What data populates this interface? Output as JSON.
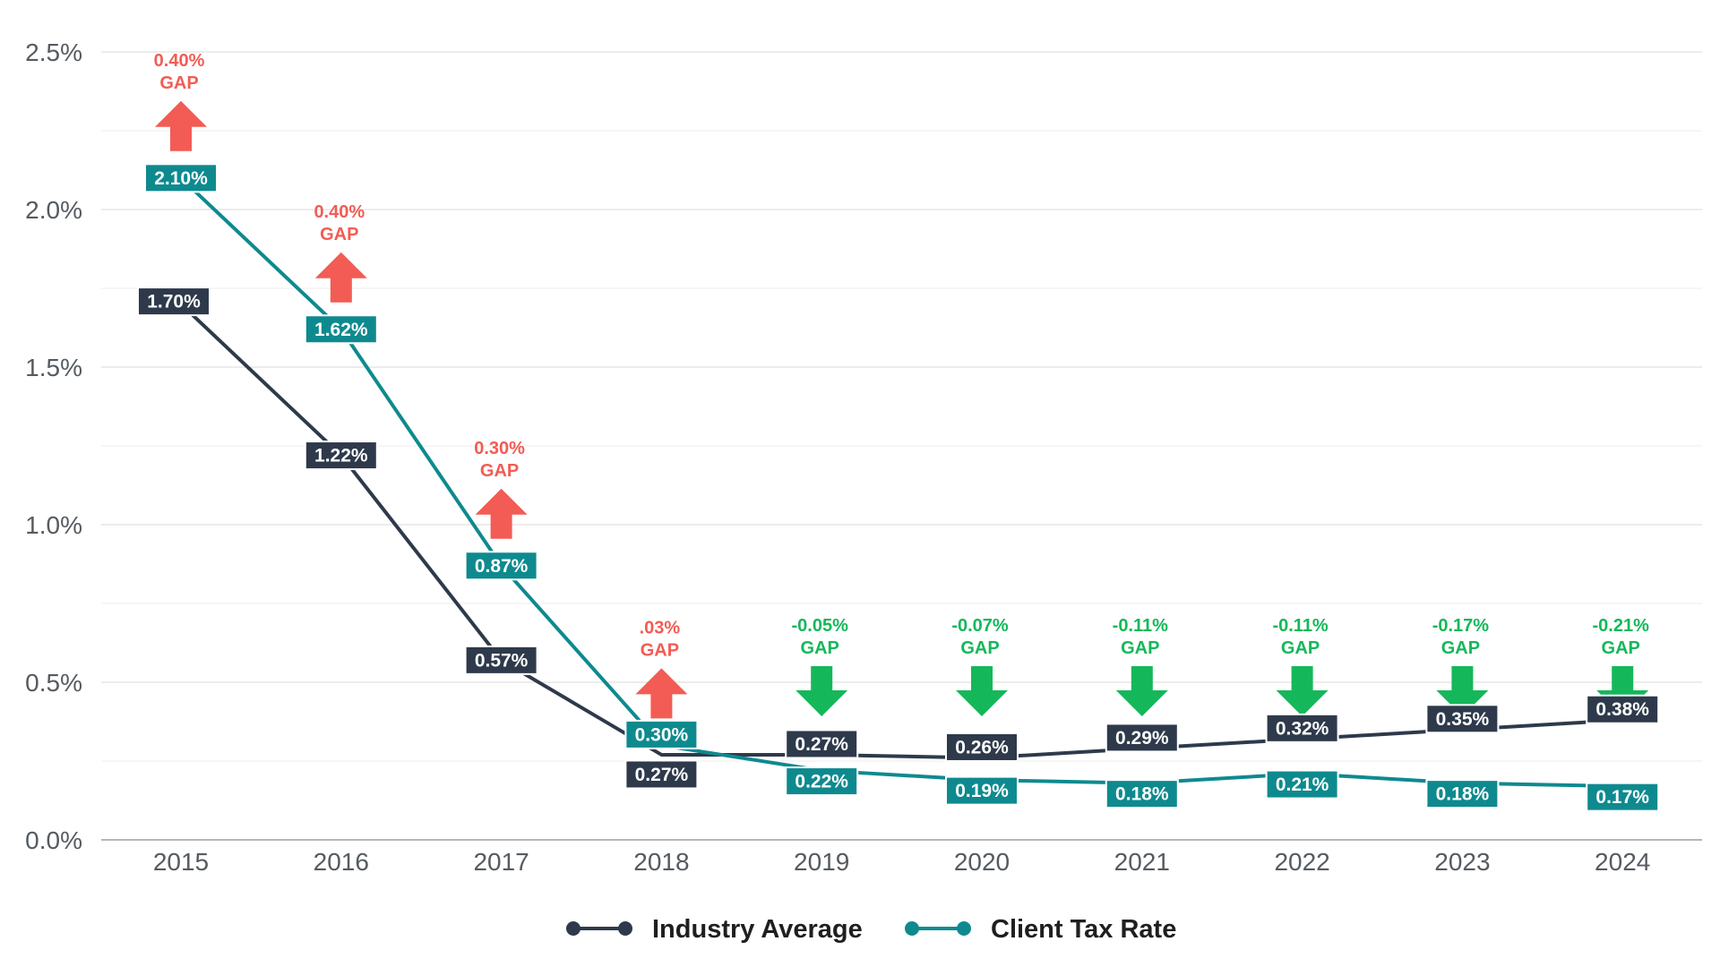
{
  "chart_data": {
    "type": "line",
    "categories": [
      "2015",
      "2016",
      "2017",
      "2018",
      "2019",
      "2020",
      "2021",
      "2022",
      "2023",
      "2024"
    ],
    "ylim": [
      0,
      2.5
    ],
    "y_ticks": [
      "0.0%",
      "0.5%",
      "1.0%",
      "1.5%",
      "2.0%",
      "2.5%"
    ],
    "grid": true,
    "legend_position": "bottom",
    "series": [
      {
        "name": "Industry Average",
        "color": "#2e3a4b",
        "values": [
          1.7,
          1.22,
          0.57,
          0.27,
          0.27,
          0.26,
          0.29,
          0.32,
          0.35,
          0.38
        ],
        "labels": [
          "1.70%",
          "1.22%",
          "0.57%",
          "0.27%",
          "0.27%",
          "0.26%",
          "0.29%",
          "0.32%",
          "0.35%",
          "0.38%"
        ]
      },
      {
        "name": "Client Tax Rate",
        "color": "#0e8a8f",
        "values": [
          2.1,
          1.62,
          0.87,
          0.3,
          0.22,
          0.19,
          0.18,
          0.21,
          0.18,
          0.17
        ],
        "labels": [
          "2.10%",
          "1.62%",
          "0.87%",
          "0.30%",
          "0.22%",
          "0.19%",
          "0.18%",
          "0.21%",
          "0.18%",
          "0.17%"
        ]
      }
    ],
    "gap_annotations": [
      {
        "value": "0.40%",
        "word": "GAP",
        "direction": "up"
      },
      {
        "value": "0.40%",
        "word": "GAP",
        "direction": "up"
      },
      {
        "value": "0.30%",
        "word": "GAP",
        "direction": "up"
      },
      {
        "value": ".03%",
        "word": "GAP",
        "direction": "up"
      },
      {
        "value": "-0.05%",
        "word": "GAP",
        "direction": "down"
      },
      {
        "value": "-0.07%",
        "word": "GAP",
        "direction": "down"
      },
      {
        "value": "-0.11%",
        "word": "GAP",
        "direction": "down"
      },
      {
        "value": "-0.11%",
        "word": "GAP",
        "direction": "down"
      },
      {
        "value": "-0.17%",
        "word": "GAP",
        "direction": "down"
      },
      {
        "value": "-0.21%",
        "word": "GAP",
        "direction": "down"
      }
    ],
    "colors": {
      "up_gap": "#f25c54",
      "down_gap": "#14b85a",
      "grid": "#d9d9d9",
      "grid_minor": "#ececec",
      "axis": "#9aa0a6"
    }
  }
}
